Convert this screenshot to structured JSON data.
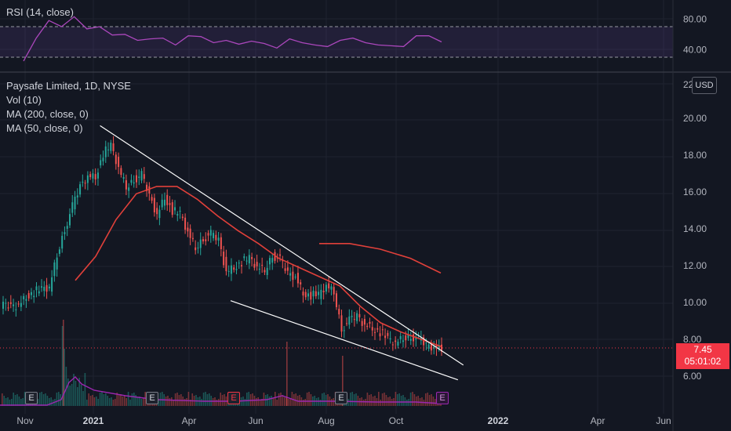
{
  "rsi": {
    "label": "RSI (14, close)",
    "upper_band": 70,
    "lower_band": 30,
    "ticks": [
      "80.00",
      "40.00"
    ],
    "color": "#ab47bc"
  },
  "legend": {
    "symbol": "Paysafe Limited, 1D, NYSE",
    "volume": "Vol (10)",
    "ma200": "MA (200, close, 0)",
    "ma50": "MA (50, close, 0)"
  },
  "price_axis": {
    "currency_button": "USD",
    "partial_top_label": "22",
    "ticks": [
      "20.00",
      "18.00",
      "16.00",
      "14.00",
      "12.00",
      "10.00",
      "8.00",
      "6.00"
    ]
  },
  "last_price": {
    "value": "7.45",
    "countdown": "05:01:02",
    "color": "#f23645"
  },
  "time_axis": {
    "ticks": [
      "Nov",
      "2021",
      "Apr",
      "Jun",
      "Aug",
      "Oct",
      "2022",
      "Apr",
      "Jun"
    ]
  },
  "earnings_markers": [
    {
      "label": "E",
      "kind": "past"
    },
    {
      "label": "E",
      "kind": "past"
    },
    {
      "label": "E",
      "kind": "miss"
    },
    {
      "label": "E",
      "kind": "past"
    },
    {
      "label": "E",
      "kind": "upcoming"
    }
  ],
  "colors": {
    "background": "#131722",
    "up": "#26a69a",
    "down": "#ef5350",
    "ma50": "#e0403a",
    "ma200": "#e0403a",
    "trendline": "#ffffff"
  },
  "chart_data": {
    "type": "candlestick",
    "x_range": [
      "2020-10-20",
      "2022-06-30"
    ],
    "y_range": [
      4.5,
      22.5
    ],
    "closes": [
      9.8,
      9.8,
      9.9,
      10.3,
      10.6,
      10.7,
      10.8,
      12.5,
      14.0,
      15.2,
      16.3,
      16.9,
      16.8,
      18.1,
      18.5,
      17.3,
      16.2,
      16.7,
      16.9,
      15.8,
      14.8,
      15.7,
      15.0,
      14.8,
      13.8,
      12.9,
      13.5,
      13.7,
      13.4,
      11.7,
      11.9,
      12.2,
      12.4,
      11.9,
      11.7,
      12.6,
      12.3,
      11.6,
      11.4,
      10.5,
      10.4,
      10.4,
      10.9,
      10.5,
      8.6,
      9.0,
      9.3,
      8.8,
      8.6,
      8.4,
      8.0,
      7.8,
      8.0,
      8.2,
      8.0,
      7.7,
      7.6,
      7.45
    ],
    "ma50": [
      11.2,
      12.5,
      14.5,
      15.9,
      16.3,
      16.3,
      15.6,
      14.7,
      13.9,
      13.2,
      12.4,
      11.9,
      11.4,
      10.9,
      9.8,
      8.9,
      8.4,
      8.0,
      7.6
    ],
    "ma200": [
      13.2,
      13.2,
      12.9,
      12.4,
      11.6
    ],
    "rsi_values": [
      25,
      55,
      78,
      70,
      83,
      67,
      70,
      59,
      60,
      52,
      54,
      55,
      46,
      58,
      57,
      49,
      52,
      47,
      51,
      48,
      42,
      54,
      49,
      46,
      44,
      52,
      55,
      49,
      46,
      45,
      44,
      58,
      58,
      50
    ],
    "trendlines": [
      {
        "from": [
          "2021-01-20",
          19.6
        ],
        "to": [
          "2021-12-20",
          6.6
        ]
      },
      {
        "from": [
          "2021-05-20",
          10.1
        ],
        "to": [
          "2021-12-15",
          5.8
        ]
      }
    ]
  }
}
